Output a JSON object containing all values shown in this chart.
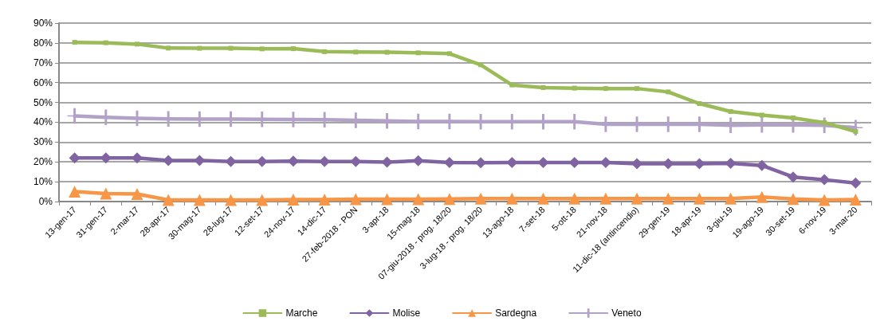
{
  "chart_data": {
    "type": "line",
    "categories": [
      "13-gen-17",
      "31-gen-17",
      "2-mar-17",
      "28-apr-17",
      "30-mag-17",
      "28-lug-17",
      "12-set-17",
      "24-nov-17",
      "14-dic-17",
      "27-feb-2018 - PON",
      "3-apr-18",
      "15-mag-18",
      "07-giu-2018 - prog. 18/20",
      "3-lug-18 - prog. 18/20",
      "13-ago-18",
      "7-set-18",
      "5-ott-18",
      "21-nov-18",
      "11-dic-18 (antincendio)",
      "29-gen-19",
      "18-apr-19",
      "3-giu-19",
      "19-ago-19",
      "30-set-19",
      "6-nov-19",
      "3-mar-20"
    ],
    "series": [
      {
        "name": "Marche",
        "color": "#9bbb59",
        "marker": "square",
        "values": [
          80.3,
          80.1,
          79.4,
          77.4,
          77.3,
          77.3,
          77.0,
          77.1,
          75.6,
          75.4,
          75.3,
          75.0,
          74.6,
          69,
          58.8,
          57.5,
          57.2,
          57,
          57,
          55.3,
          49.4,
          45.4,
          43.6,
          42.2,
          39.8,
          35.3
        ]
      },
      {
        "name": "Molise",
        "color": "#8064a2",
        "marker": "diamond",
        "values": [
          22,
          22,
          22,
          20.7,
          20.7,
          20.2,
          20.2,
          20.4,
          20.2,
          20.2,
          19.9,
          20.6,
          19.7,
          19.6,
          19.7,
          19.7,
          19.7,
          19.7,
          19.1,
          19.1,
          19.1,
          19.3,
          18.2,
          12.4,
          11,
          9.3
        ]
      },
      {
        "name": "Sardegna",
        "color": "#f79646",
        "marker": "triangle",
        "values": [
          5,
          4,
          3.8,
          0.8,
          0.8,
          0.8,
          0.8,
          1,
          1,
          1.2,
          1.2,
          1.2,
          1.3,
          1.5,
          1.5,
          1.5,
          1.5,
          1.5,
          1.5,
          1.5,
          1.5,
          1.5,
          2.3,
          1.3,
          0.8,
          1
        ]
      },
      {
        "name": "Veneto",
        "color": "#b3a2c7",
        "marker": "cross",
        "values": [
          43.2,
          42.5,
          42,
          41.7,
          41.6,
          41.6,
          41.5,
          41.4,
          41.3,
          41,
          40.7,
          40.4,
          40.4,
          40.3,
          40.3,
          40.3,
          40.3,
          39,
          39,
          39,
          39,
          38.5,
          38.7,
          38.7,
          38.5,
          37.3
        ]
      }
    ],
    "ylim": [
      0,
      90
    ],
    "yticks": [
      {
        "value": 0,
        "label": "0%"
      },
      {
        "value": 10,
        "label": "10%"
      },
      {
        "value": 20,
        "label": "20%"
      },
      {
        "value": 30,
        "label": "30%"
      },
      {
        "value": 40,
        "label": "40%"
      },
      {
        "value": 50,
        "label": "50%"
      },
      {
        "value": 60,
        "label": "60%"
      },
      {
        "value": 70,
        "label": "70%"
      },
      {
        "value": 80,
        "label": "80%"
      },
      {
        "value": 90,
        "label": "90%"
      }
    ],
    "grid": "y",
    "legend": "bottom",
    "line_style": "solid"
  }
}
